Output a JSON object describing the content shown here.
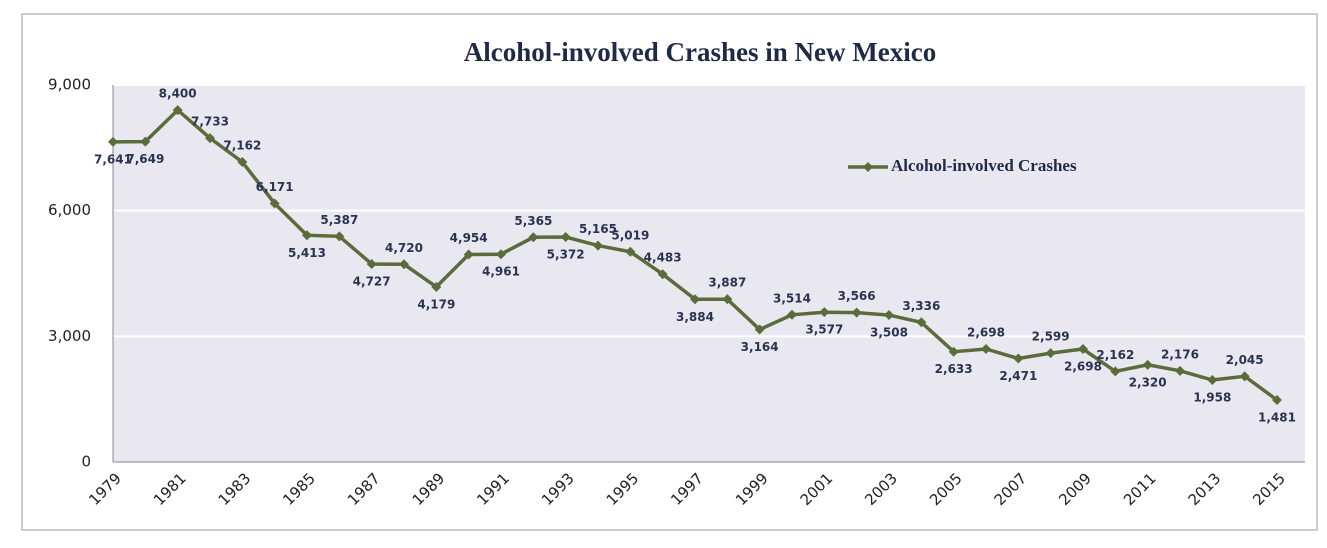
{
  "chart_data": {
    "type": "line",
    "title": "Alcohol-involved Crashes in New Mexico",
    "categories": [
      "1979",
      null,
      "1981",
      null,
      "1983",
      null,
      "1985",
      null,
      "1987",
      null,
      "1989",
      null,
      "1991",
      null,
      "1993",
      null,
      "1995",
      null,
      "1997",
      null,
      "1999",
      null,
      "2001",
      null,
      "2003",
      null,
      "2005",
      null,
      "2007",
      null,
      "2009",
      null,
      "2011",
      null,
      "2013",
      null,
      "2015"
    ],
    "series": [
      {
        "name": "Alcohol-involved Crashes",
        "color": "#5b6b3c",
        "values": [
          7641,
          7649,
          8400,
          7733,
          7162,
          6171,
          5413,
          5387,
          4727,
          4720,
          4179,
          4954,
          4961,
          5365,
          5372,
          5165,
          5019,
          4483,
          3884,
          3887,
          3164,
          3514,
          3577,
          3566,
          3508,
          3336,
          2633,
          2698,
          2471,
          2599,
          2698,
          2162,
          2320,
          2176,
          1958,
          2045,
          1481
        ],
        "value_labels": [
          "7,641",
          "7,649",
          "8,400",
          "7,733",
          "7,162",
          "6,171",
          "5,413",
          "5,387",
          "4,727",
          "4,720",
          "4,179",
          "4,954",
          "4,961",
          "5,365",
          "5,372",
          "5,165",
          "5,019",
          "4,483",
          "3,884",
          "3,887",
          "3,164",
          "3,514",
          "3,577",
          "3,566",
          "3,508",
          "3,336",
          "2,633",
          "2,698",
          "2,471",
          "2,599",
          "2,698",
          "2,162",
          "2,320",
          "2,176",
          "1,958",
          "2,045",
          "1,481"
        ]
      }
    ],
    "ylim": [
      0,
      9000
    ],
    "yticks": [
      0,
      {
        "value": 3000,
        "label": "3,000"
      },
      {
        "value": 6000,
        "label": "6,000"
      },
      {
        "value": 9000,
        "label": "9,000"
      }
    ],
    "grid": true,
    "legend": "upper right"
  }
}
